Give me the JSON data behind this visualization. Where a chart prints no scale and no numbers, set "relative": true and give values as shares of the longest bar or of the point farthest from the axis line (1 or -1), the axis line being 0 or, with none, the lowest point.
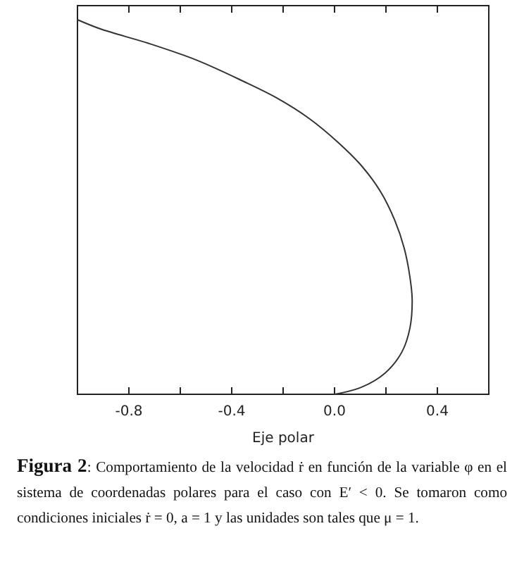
{
  "chart_data": {
    "type": "line",
    "xlabel": "Eje polar",
    "relative": true,
    "tick_labels": "x",
    "grid": false,
    "marker": "none",
    "line_style": "solid",
    "xlim": [
      -1.0,
      0.6
    ],
    "xticks": [
      {
        "value": -1.0,
        "label": null
      },
      "-0.8",
      {
        "value": -0.6,
        "label": null
      },
      {
        "value": -0.4,
        "label": "-0.4"
      },
      {
        "value": -0.2,
        "label": null
      },
      {
        "value": 0.0,
        "label": "0.0"
      },
      {
        "value": 0.2,
        "label": null
      },
      {
        "value": 0.4,
        "label": "0.4"
      },
      {
        "value": 0.6,
        "label": null
      }
    ],
    "series": [
      {
        "color": "#333333",
        "x": [
          0,
          0.105,
          0.197,
          0.262,
          0.293,
          0.302,
          0.293,
          0.271,
          0.234,
          0.179,
          0.105,
          0.013,
          -0.098,
          -0.227,
          -0.356,
          -0.54,
          -0.724,
          -0.909,
          -1.0
        ],
        "values": [
          0,
          0.019,
          0.057,
          0.113,
          0.176,
          0.252,
          0.314,
          0.39,
          0.465,
          0.541,
          0.61,
          0.673,
          0.736,
          0.792,
          0.836,
          0.893,
          0.937,
          0.975,
          1.0
        ]
      }
    ],
    "annotations": [
      "Figura 2: Comportamiento de la velocidad ṙ en función de la variable φ en el sistema de coordenadas polares para el caso con E′ < 0. Se tomaron como condiciones iniciales ṙ = 0, a = 1 y las unidades son tales que μ = 1."
    ]
  }
}
